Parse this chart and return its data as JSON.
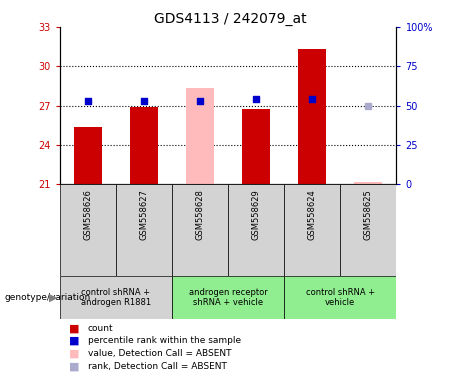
{
  "title": "GDS4113 / 242079_at",
  "samples": [
    "GSM558626",
    "GSM558627",
    "GSM558628",
    "GSM558629",
    "GSM558624",
    "GSM558625"
  ],
  "bar_values": [
    25.4,
    26.9,
    28.35,
    26.75,
    31.3,
    21.2
  ],
  "bar_colors": [
    "#cc0000",
    "#cc0000",
    "#ffbbbb",
    "#cc0000",
    "#cc0000",
    "#ffbbbb"
  ],
  "absent_bars": [
    false,
    false,
    true,
    false,
    false,
    true
  ],
  "percentile_values": [
    53,
    53,
    53,
    54,
    54,
    50
  ],
  "percentile_absent": [
    false,
    false,
    false,
    false,
    false,
    true
  ],
  "ylim_left": [
    21,
    33
  ],
  "ylim_right": [
    0,
    100
  ],
  "yticks_left": [
    21,
    24,
    27,
    30,
    33
  ],
  "yticks_right": [
    0,
    25,
    50,
    75,
    100
  ],
  "ytick_labels_right": [
    "0",
    "25",
    "50",
    "75",
    "100%"
  ],
  "group_info": [
    {
      "start": 0,
      "end": 1,
      "label": "control shRNA +\nandrogen R1881",
      "color": "#d3d3d3"
    },
    {
      "start": 2,
      "end": 3,
      "label": "androgen receptor\nshRNA + vehicle",
      "color": "#90ee90"
    },
    {
      "start": 4,
      "end": 5,
      "label": "control shRNA +\nvehicle",
      "color": "#90ee90"
    }
  ],
  "legend_items": [
    {
      "label": "count",
      "color": "#cc0000"
    },
    {
      "label": "percentile rank within the sample",
      "color": "#0000cc"
    },
    {
      "label": "value, Detection Call = ABSENT",
      "color": "#ffbbbb"
    },
    {
      "label": "rank, Detection Call = ABSENT",
      "color": "#aaaacc"
    }
  ],
  "bar_width": 0.5,
  "dot_size": 20,
  "background_color": "#ffffff",
  "left_label_color": "#cc0000",
  "right_label_color": "#0000cc"
}
